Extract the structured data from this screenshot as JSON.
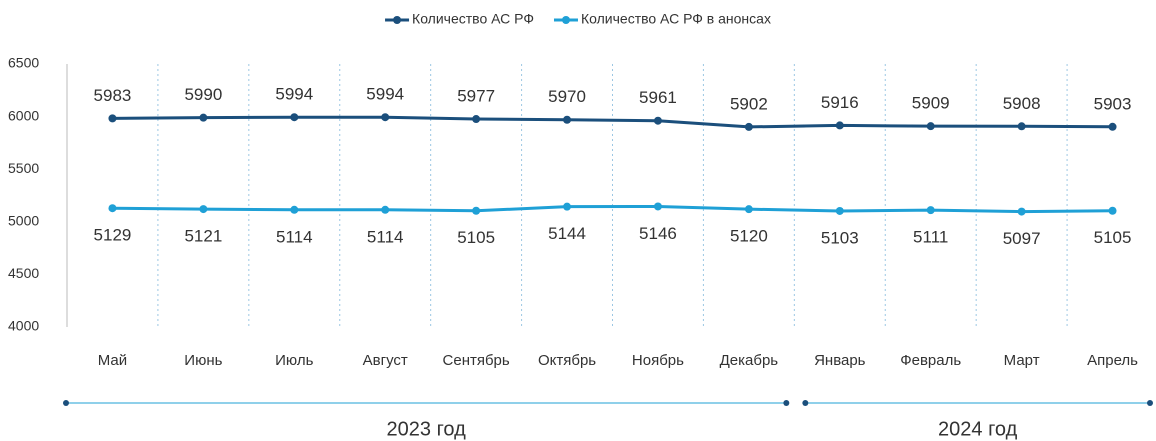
{
  "chart_data": {
    "type": "line",
    "categories": [
      "Май",
      "Июнь",
      "Июль",
      "Август",
      "Сентябрь",
      "Октябрь",
      "Ноябрь",
      "Декабрь",
      "Январь",
      "Февраль",
      "Март",
      "Апрель"
    ],
    "series": [
      {
        "name": "Количество АС РФ",
        "color": "#1b4f7c",
        "values": [
          5983,
          5990,
          5994,
          5994,
          5977,
          5970,
          5961,
          5902,
          5916,
          5909,
          5908,
          5903
        ]
      },
      {
        "name": "Количество АС РФ в анонсах",
        "color": "#1fa0d6",
        "values": [
          5129,
          5121,
          5114,
          5114,
          5105,
          5144,
          5146,
          5120,
          5103,
          5111,
          5097,
          5105
        ]
      }
    ],
    "ylim": [
      4000,
      6500
    ],
    "yticks": [
      4000,
      4500,
      5000,
      5500,
      6000,
      6500
    ],
    "legend": "top",
    "groups": [
      {
        "label": "2023 год",
        "span": 8
      },
      {
        "label": "2024 год",
        "span": 4
      }
    ]
  }
}
